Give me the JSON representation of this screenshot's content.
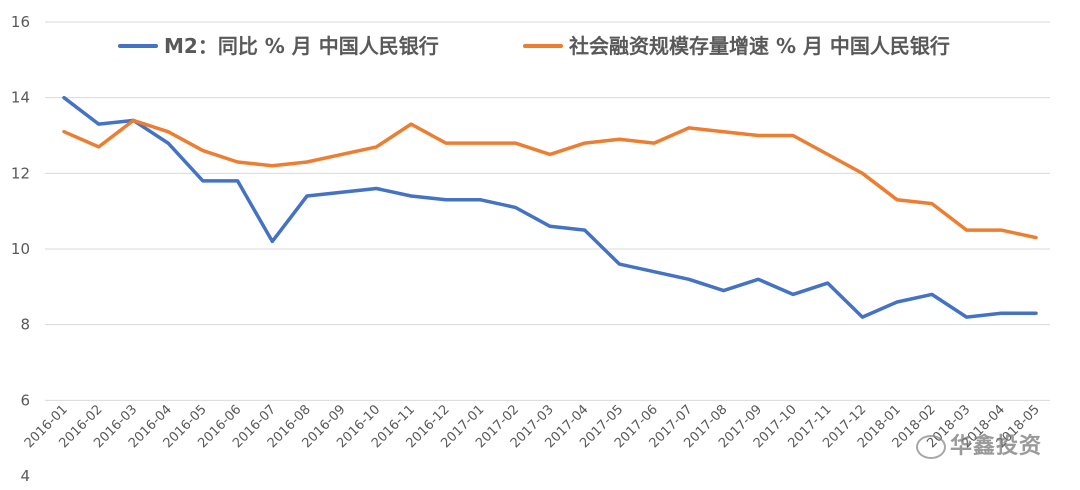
{
  "chart_data": {
    "type": "line",
    "title": "",
    "xlabel": "",
    "ylabel": "",
    "ylim": [
      4,
      16
    ],
    "yticks": [
      4,
      6,
      8,
      10,
      12,
      14,
      16
    ],
    "grid": true,
    "legend_position": "top",
    "x": [
      "2016-01",
      "2016-02",
      "2016-03",
      "2016-04",
      "2016-05",
      "2016-06",
      "2016-07",
      "2016-08",
      "2016-09",
      "2016-10",
      "2016-11",
      "2016-12",
      "2017-01",
      "2017-02",
      "2017-03",
      "2017-04",
      "2017-05",
      "2017-06",
      "2017-07",
      "2017-08",
      "2017-09",
      "2017-10",
      "2017-11",
      "2017-12",
      "2018-01",
      "2018-02",
      "2018-03",
      "2018-04",
      "2018-05"
    ],
    "series": [
      {
        "name": "M2：同比 % 月 中国人民银行",
        "color": "#4472c4",
        "values": [
          14.0,
          13.3,
          13.4,
          12.8,
          11.8,
          11.8,
          10.2,
          11.4,
          11.5,
          11.6,
          11.4,
          11.3,
          11.3,
          11.1,
          10.6,
          10.5,
          9.6,
          9.4,
          9.2,
          8.9,
          9.2,
          8.8,
          9.1,
          8.2,
          8.6,
          8.8,
          8.2,
          8.3,
          8.3
        ]
      },
      {
        "name": "社会融资规模存量增速 % 月 中国人民银行",
        "color": "#ed7d31",
        "values": [
          13.1,
          12.7,
          13.4,
          13.1,
          12.6,
          12.3,
          12.2,
          12.3,
          12.5,
          12.7,
          13.3,
          12.8,
          12.8,
          12.8,
          12.5,
          12.8,
          12.9,
          12.8,
          13.2,
          13.1,
          13.0,
          13.0,
          12.5,
          12.0,
          11.3,
          11.2,
          10.5,
          10.5,
          10.3
        ]
      }
    ]
  },
  "watermark": "华鑫投资"
}
